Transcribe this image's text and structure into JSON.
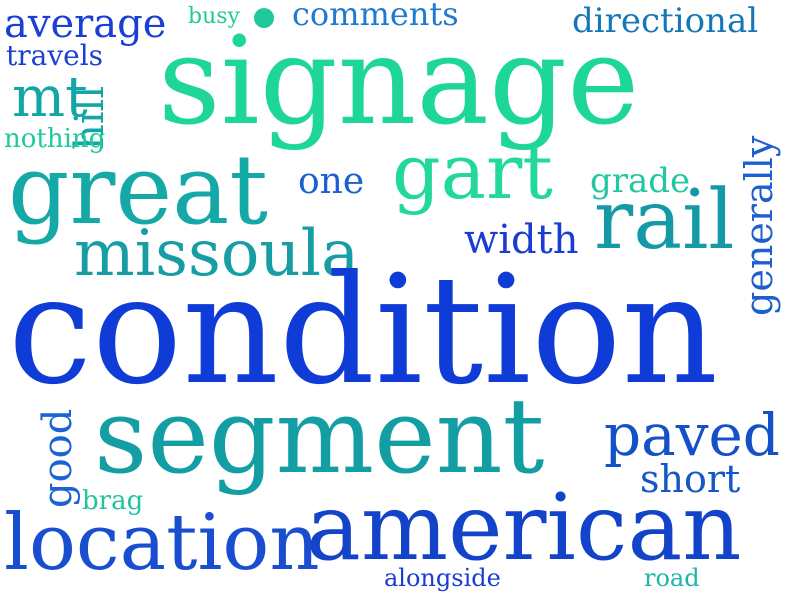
{
  "word_cloud": {
    "words": [
      {
        "text": "average",
        "color": "#1a3fd6"
      },
      {
        "text": "busy",
        "color": "#21c99a"
      },
      {
        "text": "comments",
        "color": "#1f7bd0"
      },
      {
        "text": "directional",
        "color": "#1478b8"
      },
      {
        "text": "travels",
        "color": "#1c3fd4"
      },
      {
        "text": "signage",
        "color": "#1fd69a"
      },
      {
        "text": "mt",
        "color": "#14a6a4"
      },
      {
        "text": "hill",
        "color": "#14a6a4"
      },
      {
        "text": "nothing",
        "color": "#20c99a"
      },
      {
        "text": "generally",
        "color": "#1e5fd0"
      },
      {
        "text": "great",
        "color": "#14a8a6"
      },
      {
        "text": "gart",
        "color": "#22d89c"
      },
      {
        "text": "one",
        "color": "#1a60d0"
      },
      {
        "text": "grade",
        "color": "#20c7a0"
      },
      {
        "text": "width",
        "color": "#1b3cd2"
      },
      {
        "text": "rail",
        "color": "#139aa6"
      },
      {
        "text": "missoula",
        "color": "#169ea4"
      },
      {
        "text": "condition",
        "color": "#0f3bd6"
      },
      {
        "text": "good",
        "color": "#1a63d0"
      },
      {
        "text": "segment",
        "color": "#139ea4"
      },
      {
        "text": "paved",
        "color": "#1450c8"
      },
      {
        "text": "short",
        "color": "#1656c6"
      },
      {
        "text": "brag",
        "color": "#20c5a0"
      },
      {
        "text": "location",
        "color": "#1a4ed0"
      },
      {
        "text": "american",
        "color": "#1243c8"
      },
      {
        "text": "alongside",
        "color": "#1b3cd2"
      },
      {
        "text": "road",
        "color": "#1ab6a8"
      }
    ],
    "dot_color": "#20c99a"
  }
}
